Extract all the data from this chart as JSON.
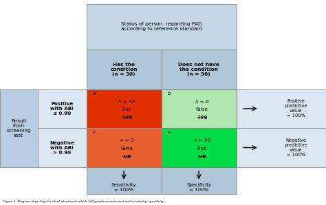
{
  "title": "Status of person  regarding PAD\naccording to reference standard",
  "col_header1": "Has the\ncondition\n(n = 30)",
  "col_header2": "Does not have\nthe condition\n(n = 90)",
  "row_label_outer": "Result\nfrom\nscreening\ntest",
  "row_label1": "Positive\nwith ABI\n≤ 0.90",
  "row_label2": "Negative\nwith ABI\n> 0.90",
  "cell_a_letter": "a",
  "cell_a_n": "n = 30",
  "cell_a_line2": "True",
  "cell_a_line3": "+ve",
  "cell_b_letter": "b",
  "cell_b_n": "n = 0",
  "cell_b_line2": "False",
  "cell_b_line3": "+ve",
  "cell_c_letter": "c",
  "cell_c_n": "n = 0",
  "cell_c_line2": "False",
  "cell_c_line3": "-ve",
  "cell_d_letter": "d",
  "cell_d_n": "n = 90",
  "cell_d_line2": "True",
  "cell_d_line3": "-ve",
  "ppv_label": "Positive\npredictive\nvalue\n= 100%",
  "npv_label": "Negative\npredictive\nvalue\n= 100%",
  "sens_label": "Sensitivity\n= 100%",
  "spec_label": "Specificity\n= 100%",
  "color_main_header_bg": "#c5d5e8",
  "color_col_header_bg": "#aec6d8",
  "color_outer_row_bg": "#b8cce4",
  "color_row_label_bg": "#dce6f1",
  "color_ppv_npv_bg": "#dce6f1",
  "color_sens_spec_bg": "#aec6d8",
  "color_cell_a": "#e03000",
  "color_cell_b": "#b0e8b0",
  "color_cell_c": "#e86030",
  "color_cell_d": "#00dd44",
  "background": "#ffffff",
  "caption": "Figure 1. Diagram depicting the ideal situation in which 120 people were tested and sensitivity, specificity..."
}
